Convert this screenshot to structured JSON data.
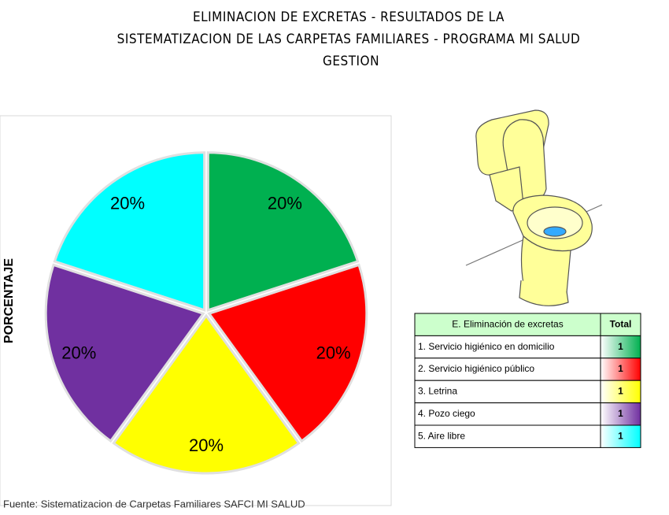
{
  "chart_data": {
    "type": "pie",
    "title": [
      "ELIMINACION DE EXCRETAS - RESULTADOS DE LA",
      "SISTEMATIZACION DE LAS CARPETAS FAMILIARES - PROGRAMA MI SALUD",
      "GESTION"
    ],
    "y_label": "PORCENTAJE",
    "values": [
      20,
      20,
      20,
      20,
      20
    ],
    "value_labels": [
      "20%",
      "20%",
      "20%",
      "20%",
      "20%"
    ],
    "colors": [
      "#00b050",
      "#ff0000",
      "#ffff00",
      "#7030a0",
      "#00ffff"
    ],
    "source": "Fuente: Sistematizacion de Carpetas Familiares SAFCI MI SALUD"
  },
  "table": {
    "header": [
      "E. Eliminación de excretas",
      "Total"
    ],
    "rows": [
      [
        "1. Servicio higiénico en domicilio",
        1
      ],
      [
        "2. Servicio higiénico público",
        1
      ],
      [
        "3. Letrina",
        1
      ],
      [
        "4. Pozo ciego",
        1
      ],
      [
        "5. Aire libre",
        1
      ]
    ]
  }
}
